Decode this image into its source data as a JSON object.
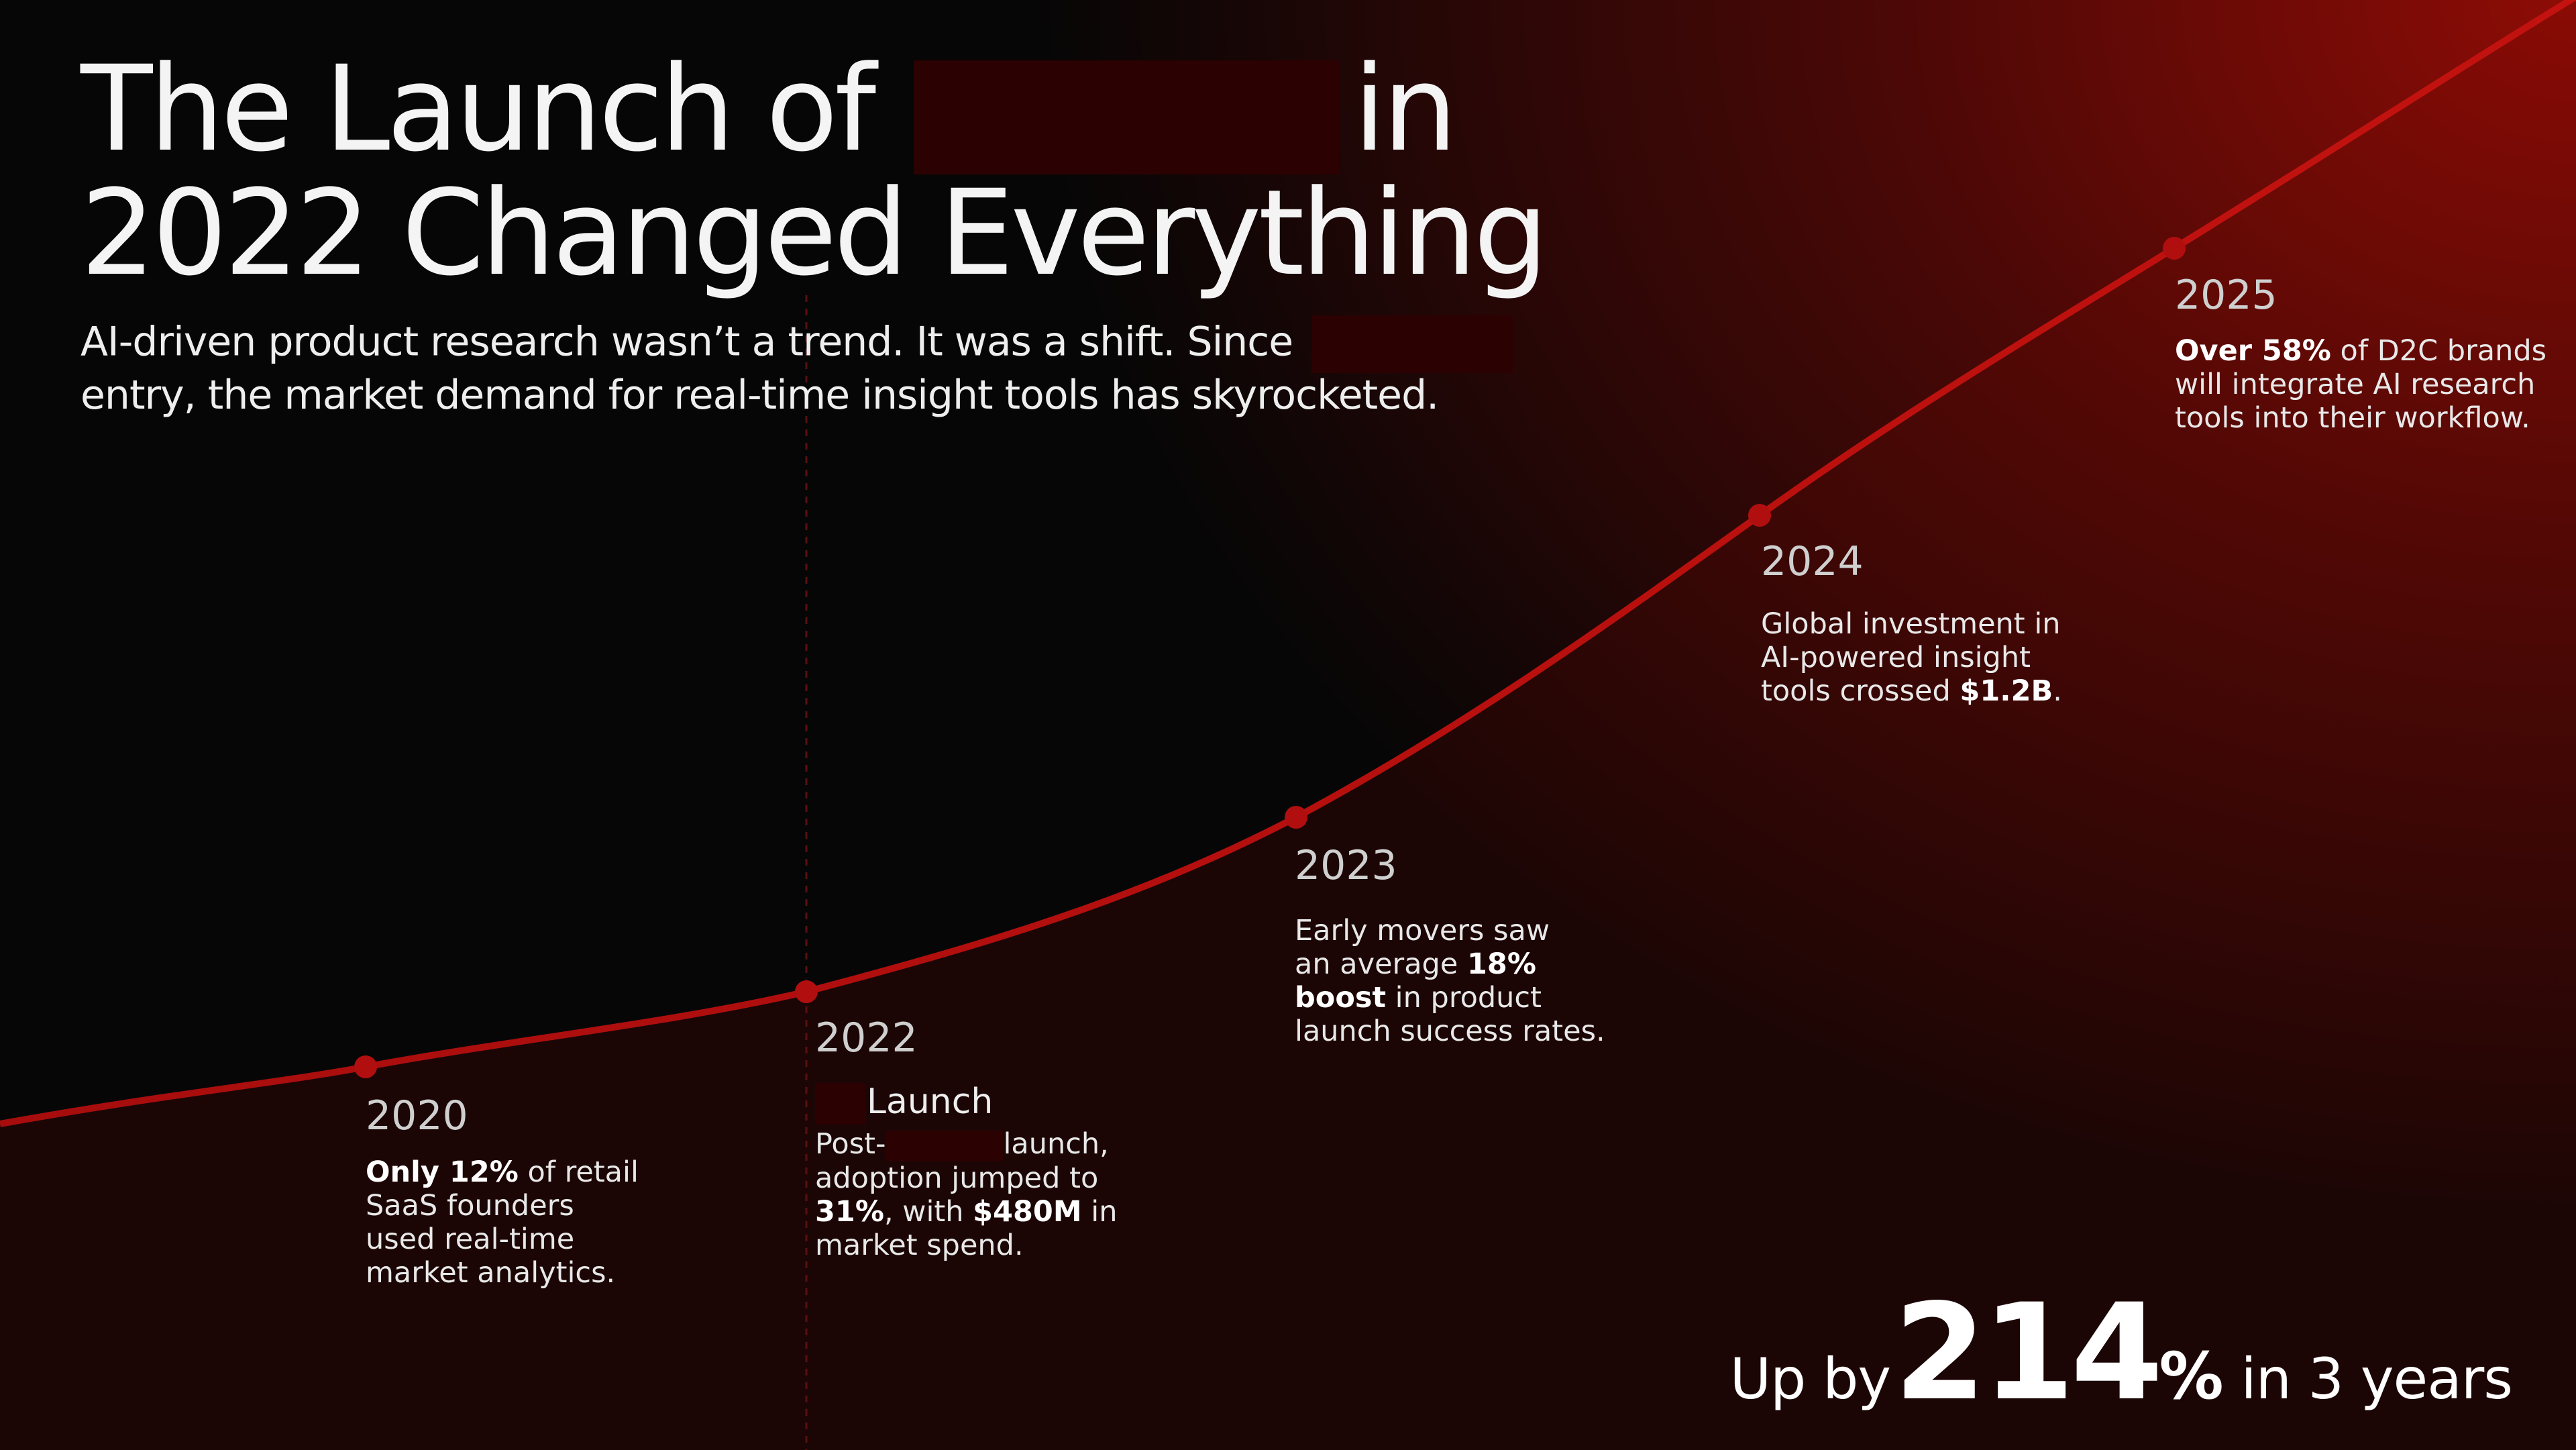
{
  "header": {
    "title_part1": "The Launch of",
    "title_part2": "in",
    "title_line2": "2022 Changed Everything",
    "subtitle_part1": "AI-driven product research wasn’t a trend. It was a shift. Since",
    "subtitle_line2": "entry, the market demand for real-time insight tools has skyrocketed."
  },
  "milestones": [
    {
      "year": "2020",
      "lines": [
        [
          {
            "b": "Only 12%"
          },
          {
            "t": " of retail"
          }
        ],
        [
          {
            "t": "SaaS founders"
          }
        ],
        [
          {
            "t": "used real-time"
          }
        ],
        [
          {
            "t": "market analytics."
          }
        ]
      ]
    },
    {
      "year": "2022",
      "sub_label": "Launch",
      "lines": [
        [
          {
            "t": "Post-"
          },
          {
            "r": true
          },
          {
            "t": "launch,"
          }
        ],
        [
          {
            "t": "adoption jumped to"
          }
        ],
        [
          {
            "b": "31%"
          },
          {
            "t": ", with "
          },
          {
            "b": "$480M"
          },
          {
            "t": " in"
          }
        ],
        [
          {
            "t": "market spend."
          }
        ]
      ]
    },
    {
      "year": "2023",
      "lines": [
        [
          {
            "t": "Early movers saw"
          }
        ],
        [
          {
            "t": "an average "
          },
          {
            "b": "18%"
          }
        ],
        [
          {
            "b": "boost"
          },
          {
            "t": " in product"
          }
        ],
        [
          {
            "t": "launch success rates."
          }
        ]
      ]
    },
    {
      "year": "2024",
      "lines": [
        [
          {
            "t": "Global investment in"
          }
        ],
        [
          {
            "t": "AI-powered insight"
          }
        ],
        [
          {
            "t": "tools crossed "
          },
          {
            "b": "$1.2B"
          },
          {
            "t": "."
          }
        ]
      ]
    },
    {
      "year": "2025",
      "lines": [
        [
          {
            "b": "Over 58%"
          },
          {
            "t": " of D2C brands"
          }
        ],
        [
          {
            "t": "will integrate AI research"
          }
        ],
        [
          {
            "t": "tools into their workflow."
          }
        ]
      ]
    }
  ],
  "summary": {
    "prefix": "Up by",
    "value": "214",
    "unit": "%",
    "suffix": " in 3 years"
  },
  "colors": {
    "line": "#b10f0f",
    "accent_fill": "#8e0c06",
    "redaction": "#2b0101"
  },
  "chart_data": {
    "type": "line",
    "x": [
      "2020",
      "2022",
      "2023",
      "2024",
      "2025"
    ],
    "series": [
      {
        "values": [
          12,
          31,
          null,
          null,
          58
        ]
      }
    ],
    "annotations": {
      "2022_market_spend": "$480M",
      "2023_launch_success_boost": "18%",
      "2024_global_investment": "$1.2B"
    },
    "grid": false,
    "marker_line_at": "2022"
  }
}
